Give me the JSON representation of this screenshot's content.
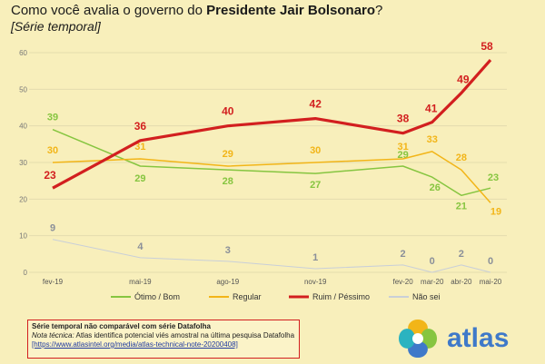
{
  "header": {
    "title_prefix": "Como você avalia o governo do ",
    "title_bold": "Presidente Jair Bolsonaro",
    "title_suffix": "?",
    "subtitle": "[Série temporal]"
  },
  "chart_data": {
    "type": "line",
    "x": [
      "fev-19",
      "mai-19",
      "ago-19",
      "nov-19",
      "fev-20",
      "mar-20",
      "abr-20",
      "mai-20"
    ],
    "x_pos": [
      0,
      3,
      6,
      9,
      12,
      13,
      14,
      15
    ],
    "ylim": [
      0,
      60
    ],
    "yticks": [
      0,
      10,
      20,
      30,
      40,
      50,
      60
    ],
    "grid": true,
    "legend_position": "bottom",
    "series": [
      {
        "name": "Ótimo / Bom",
        "color": "#86c540",
        "values": [
          39,
          29,
          28,
          27,
          29,
          26,
          21,
          23
        ]
      },
      {
        "name": "Regular",
        "color": "#f2b518",
        "values": [
          30,
          31,
          29,
          30,
          31,
          33,
          28,
          19
        ]
      },
      {
        "name": "Ruim / Péssimo",
        "color": "#d21f1f",
        "values": [
          23,
          36,
          40,
          42,
          38,
          41,
          49,
          58
        ]
      },
      {
        "name": "Não sei",
        "color": "#c9cfd8",
        "values": [
          9,
          4,
          3,
          1,
          2,
          0,
          2,
          0
        ]
      }
    ]
  },
  "note": {
    "line1": "Série temporal não comparável com série Datafolha",
    "line2_label": "Nota técnica:",
    "line2_text": " Atlas identifica potencial viés amostral na última pesquisa Datafolha",
    "line3": "[https://www.atlasintel.org/media/atlas-technical-note-20200408]"
  },
  "logo": {
    "brand": "atlas",
    "colors": [
      "#f2b518",
      "#86c540",
      "#3f79c9",
      "#2bb3c0"
    ]
  }
}
